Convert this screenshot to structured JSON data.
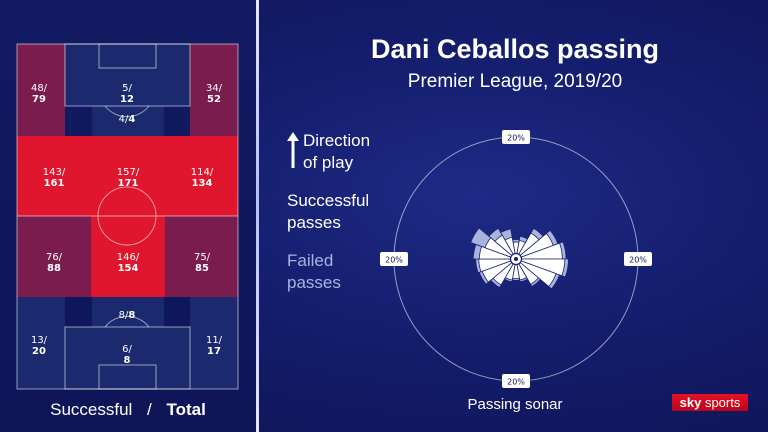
{
  "colors": {
    "background": "#141d6c",
    "successful": "#ffffff",
    "failed": "#aab3dd",
    "zone_low": "#1b2a6e",
    "zone_mid": "#7a1d4e",
    "zone_high": "#e0162e"
  },
  "legend": {
    "caption_successful": "Successful",
    "caption_separator": "/",
    "caption_total": "Total",
    "direction_line1": "Direction",
    "direction_line2": "of play",
    "successful_line1": "Successful",
    "successful_line2": "passes",
    "failed_line1": "Failed",
    "failed_line2": "passes"
  },
  "icons": {
    "direction": "up-arrow-icon",
    "brand": "sky-sports-logo"
  },
  "chart_data": [
    {
      "type": "heatmap",
      "title": "",
      "zones": [
        {
          "name": "top-left",
          "successful": 48,
          "total": 79,
          "intensity": "mid"
        },
        {
          "name": "top-box",
          "successful": 5,
          "total": 12,
          "intensity": "low"
        },
        {
          "name": "top-right",
          "successful": 34,
          "total": 52,
          "intensity": "mid"
        },
        {
          "name": "top-centre-front",
          "successful": 4,
          "total": 4,
          "intensity": "low"
        },
        {
          "name": "upper-mid-left",
          "successful": 143,
          "total": 161,
          "intensity": "high"
        },
        {
          "name": "upper-mid-centre",
          "successful": 157,
          "total": 171,
          "intensity": "high"
        },
        {
          "name": "upper-mid-right",
          "successful": 114,
          "total": 134,
          "intensity": "high"
        },
        {
          "name": "lower-mid-left",
          "successful": 76,
          "total": 88,
          "intensity": "mid"
        },
        {
          "name": "lower-mid-centre",
          "successful": 146,
          "total": 154,
          "intensity": "high"
        },
        {
          "name": "lower-mid-right",
          "successful": 75,
          "total": 85,
          "intensity": "mid"
        },
        {
          "name": "bottom-centre-front",
          "successful": 8,
          "total": 8,
          "intensity": "low"
        },
        {
          "name": "bottom-left",
          "successful": 13,
          "total": 20,
          "intensity": "low"
        },
        {
          "name": "bottom-box",
          "successful": 6,
          "total": 8,
          "intensity": "low"
        },
        {
          "name": "bottom-right",
          "successful": 11,
          "total": 17,
          "intensity": "low"
        }
      ]
    },
    {
      "type": "sonar",
      "title": "Dani Ceballos passing",
      "subtitle": "Premier League, 2019/20",
      "caption": "Passing sonar",
      "scale_max_percent": 20,
      "scale_labels": {
        "top": "20%",
        "left": "20%",
        "right": "20%",
        "bottom": "20%"
      },
      "direction_of_play": "up",
      "sectors_degrees_clockwise_from_up": [
        {
          "angle": 0,
          "total_percent": 3.2,
          "successful_percent": 2.8
        },
        {
          "angle": 20,
          "total_percent": 3.8,
          "successful_percent": 3.1
        },
        {
          "angle": 40,
          "total_percent": 5.8,
          "successful_percent": 4.9
        },
        {
          "angle": 60,
          "total_percent": 7.3,
          "successful_percent": 6.5
        },
        {
          "angle": 80,
          "total_percent": 8.2,
          "successful_percent": 7.6
        },
        {
          "angle": 100,
          "total_percent": 8.6,
          "successful_percent": 8.0
        },
        {
          "angle": 120,
          "total_percent": 7.6,
          "successful_percent": 7.0
        },
        {
          "angle": 140,
          "total_percent": 5.2,
          "successful_percent": 4.8
        },
        {
          "angle": 160,
          "total_percent": 3.8,
          "successful_percent": 3.5
        },
        {
          "angle": 180,
          "total_percent": 3.5,
          "successful_percent": 3.2
        },
        {
          "angle": 200,
          "total_percent": 3.8,
          "successful_percent": 3.5
        },
        {
          "angle": 220,
          "total_percent": 5.4,
          "successful_percent": 4.9
        },
        {
          "angle": 240,
          "total_percent": 6.4,
          "successful_percent": 5.9
        },
        {
          "angle": 260,
          "total_percent": 6.6,
          "successful_percent": 6.1
        },
        {
          "angle": 280,
          "total_percent": 7.0,
          "successful_percent": 6.0
        },
        {
          "angle": 300,
          "total_percent": 7.9,
          "successful_percent": 5.4
        },
        {
          "angle": 320,
          "total_percent": 5.8,
          "successful_percent": 4.5
        },
        {
          "angle": 340,
          "total_percent": 5.0,
          "successful_percent": 3.6
        }
      ]
    }
  ]
}
